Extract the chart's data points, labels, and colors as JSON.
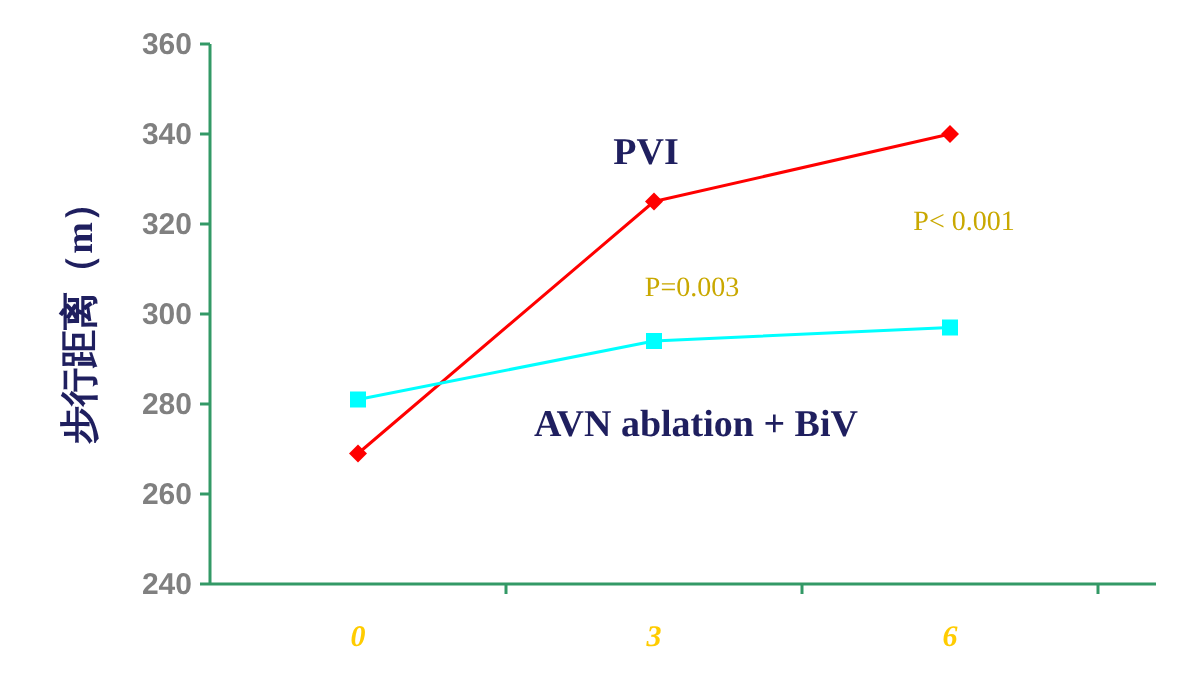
{
  "chart_data": {
    "type": "line",
    "ylabel": "步行距离（m）",
    "categories": [
      "0",
      "3",
      "6"
    ],
    "series": [
      {
        "name": "PVI",
        "color": "#ff0000",
        "marker": "diamond",
        "values": [
          269,
          325,
          340
        ]
      },
      {
        "name": "AVN ablation + BiV",
        "color": "#00ffff",
        "marker": "square",
        "values": [
          281,
          294,
          297
        ]
      }
    ],
    "ylim": [
      240,
      360
    ],
    "yticks": [
      240,
      260,
      280,
      300,
      320,
      340,
      360
    ],
    "grid": false,
    "annotations": [
      "P=0.003",
      "P< 0.001"
    ]
  }
}
